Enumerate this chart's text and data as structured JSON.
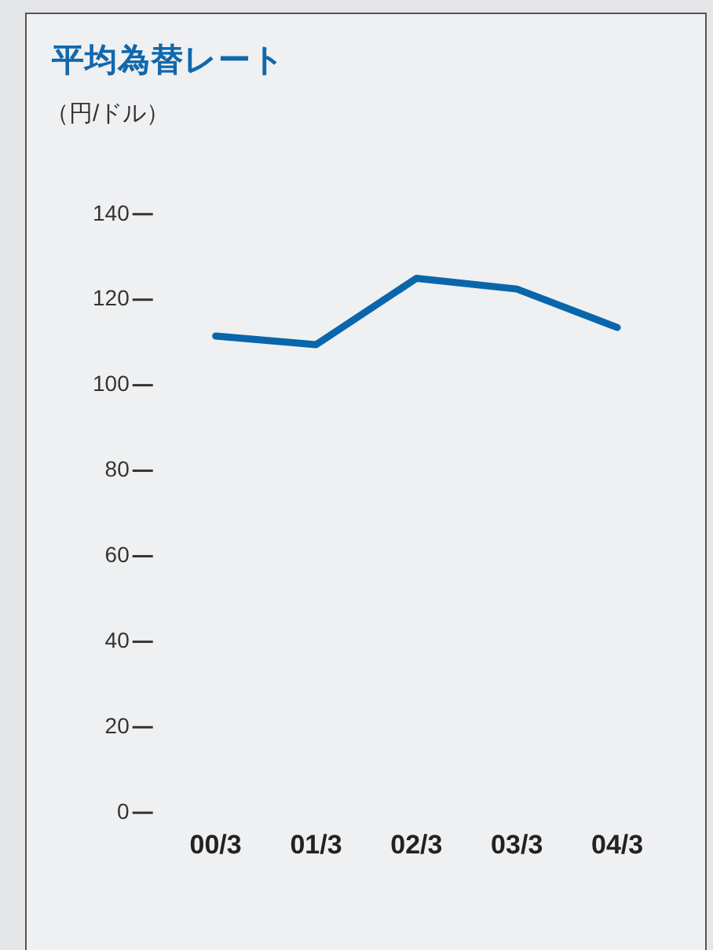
{
  "chart_data": {
    "type": "line",
    "title": "平均為替レート",
    "subtitle": "（円/ドル）",
    "categories": [
      "00/3",
      "01/3",
      "02/3",
      "03/3",
      "04/3"
    ],
    "series": [
      {
        "color": "#0a66aa",
        "values": [
          111.5,
          109.5,
          125,
          122.5,
          113.5
        ]
      }
    ],
    "ylim": [
      0,
      140
    ],
    "yticks": [
      0,
      20,
      40,
      60,
      80,
      100,
      120,
      140
    ],
    "grid": false,
    "legend": false,
    "marker": "none"
  }
}
